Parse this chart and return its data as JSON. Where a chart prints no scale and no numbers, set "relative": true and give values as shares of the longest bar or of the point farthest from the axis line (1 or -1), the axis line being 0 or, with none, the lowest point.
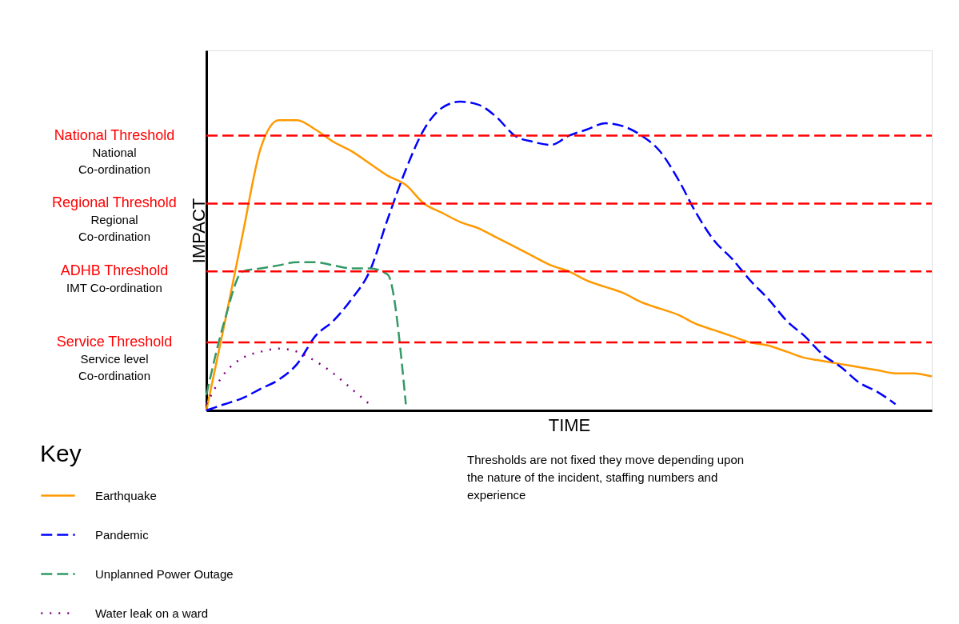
{
  "chart_data": {
    "type": "line",
    "relative": true,
    "xlabel": "TIME",
    "ylabel": "IMPACT",
    "legend_title": "Key",
    "legend": "bottom",
    "categories": [
      null,
      null,
      null,
      null,
      null,
      null,
      null,
      null,
      null,
      null,
      null,
      null,
      null,
      null,
      null,
      null,
      null,
      null,
      null,
      null,
      null,
      null,
      null,
      null,
      null,
      null,
      null,
      null,
      null,
      null,
      null,
      null,
      null,
      null,
      null,
      null,
      null,
      null,
      null,
      null,
      null
    ],
    "series": [
      {
        "name": "Earthquake",
        "color": "#ff9900",
        "line_style": "solid",
        "values": [
          0,
          0.28,
          0.57,
          0.85,
          0.94,
          0.94,
          0.91,
          0.87,
          0.84,
          0.8,
          0.76,
          0.73,
          0.67,
          0.64,
          0.61,
          0.59,
          0.56,
          0.53,
          0.5,
          0.47,
          0.45,
          0.42,
          0.4,
          0.38,
          0.35,
          0.33,
          0.31,
          0.28,
          0.26,
          0.24,
          0.22,
          0.21,
          0.19,
          0.17,
          0.16,
          0.15,
          0.14,
          0.13,
          0.12,
          0.12,
          0.11
        ]
      },
      {
        "name": "Pandemic",
        "color": "#0000ff",
        "line_style": "dashed",
        "values": [
          0,
          0.02,
          0.04,
          0.07,
          0.1,
          0.15,
          0.24,
          0.29,
          0.36,
          0.45,
          0.62,
          0.78,
          0.91,
          0.98,
          1.0,
          0.99,
          0.95,
          0.89,
          0.87,
          0.86,
          0.89,
          0.91,
          0.93,
          0.92,
          0.89,
          0.84,
          0.75,
          0.64,
          0.55,
          0.49,
          0.42,
          0.36,
          0.29,
          0.24,
          0.18,
          0.14,
          0.09,
          0.06,
          0.02,
          null,
          null
        ]
      },
      {
        "name": "Unplanned Power Outage",
        "color": "#339966",
        "line_style": "dashed",
        "values": [
          0.05,
          0.29,
          0.45,
          0.46,
          0.47,
          0.48,
          0.48,
          0.47,
          0.46,
          0.46,
          0.44,
          0.02,
          null,
          null,
          null,
          null,
          null,
          null,
          null,
          null,
          null,
          null,
          null,
          null,
          null,
          null,
          null,
          null,
          null,
          null,
          null,
          null,
          null,
          null,
          null,
          null,
          null,
          null,
          null,
          null,
          null
        ]
      },
      {
        "name": "Water leak on a ward",
        "color": "#800080",
        "line_style": "dotted",
        "values": [
          0.02,
          0.12,
          0.17,
          0.19,
          0.2,
          0.19,
          0.16,
          0.12,
          0.07,
          0.02,
          null,
          null,
          null,
          null,
          null,
          null,
          null,
          null,
          null,
          null,
          null,
          null,
          null,
          null,
          null,
          null,
          null,
          null,
          null,
          null,
          null,
          null,
          null,
          null,
          null,
          null,
          null,
          null,
          null,
          null,
          null
        ]
      }
    ],
    "ref_lines": [
      {
        "axis": "y",
        "value": 0.89,
        "label": "National Threshold",
        "color": "#ff0000",
        "line_style": "dashed"
      },
      {
        "axis": "y",
        "value": 0.67,
        "label": "Regional Threshold",
        "color": "#ff0000",
        "line_style": "dashed"
      },
      {
        "axis": "y",
        "value": 0.45,
        "label": "ADHB Threshold",
        "color": "#ff0000",
        "line_style": "dashed"
      },
      {
        "axis": "y",
        "value": 0.22,
        "label": "Service Threshold",
        "color": "#ff0000",
        "line_style": "dashed"
      }
    ],
    "annotations": [
      "National Co-ordination",
      "Regional Co-ordination",
      "IMT Co-ordination",
      "Service level Co-ordination",
      "Thresholds are not fixed they move depending upon the nature of the incident,  staffing numbers and experience"
    ]
  }
}
